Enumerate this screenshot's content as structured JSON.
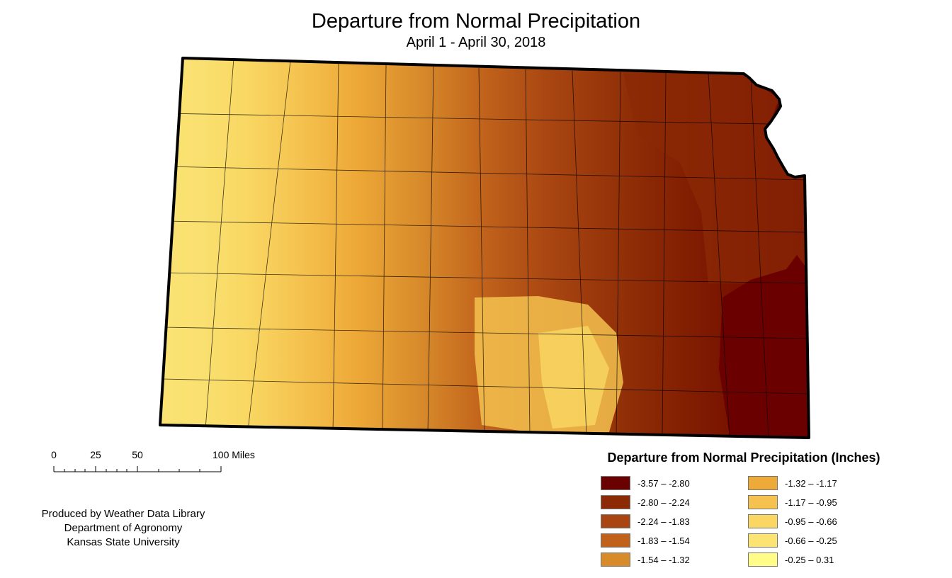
{
  "map": {
    "title": "Departure from Normal  Precipitation",
    "subtitle": "April 1 - April 30, 2018",
    "region_icon": "kansas-state-outline"
  },
  "scale_bar": {
    "ticks": [
      "0",
      "25",
      "50",
      "100 Miles"
    ]
  },
  "credits": {
    "line1": "Produced by Weather Data Library",
    "line2": "Department of Agronomy",
    "line3": "Kansas State University"
  },
  "legend": {
    "title": "Departure from Normal Precipitation (Inches)",
    "items": [
      {
        "label": "-3.57 – -2.80",
        "color": "#6b0000"
      },
      {
        "label": "-2.80 – -2.24",
        "color": "#8b2a05"
      },
      {
        "label": "-2.24 – -1.83",
        "color": "#a84511"
      },
      {
        "label": "-1.83 – -1.54",
        "color": "#c0621b"
      },
      {
        "label": "-1.54 – -1.32",
        "color": "#d88b2b"
      },
      {
        "label": "-1.32 – -1.17",
        "color": "#eeaa38"
      },
      {
        "label": "-1.17 – -0.95",
        "color": "#f5c24f"
      },
      {
        "label": "-0.95 – -0.66",
        "color": "#f9d762"
      },
      {
        "label": "-0.66 – -0.25",
        "color": "#fbe473"
      },
      {
        "label": "-0.25 – 0.31",
        "color": "#fffc87"
      }
    ]
  }
}
